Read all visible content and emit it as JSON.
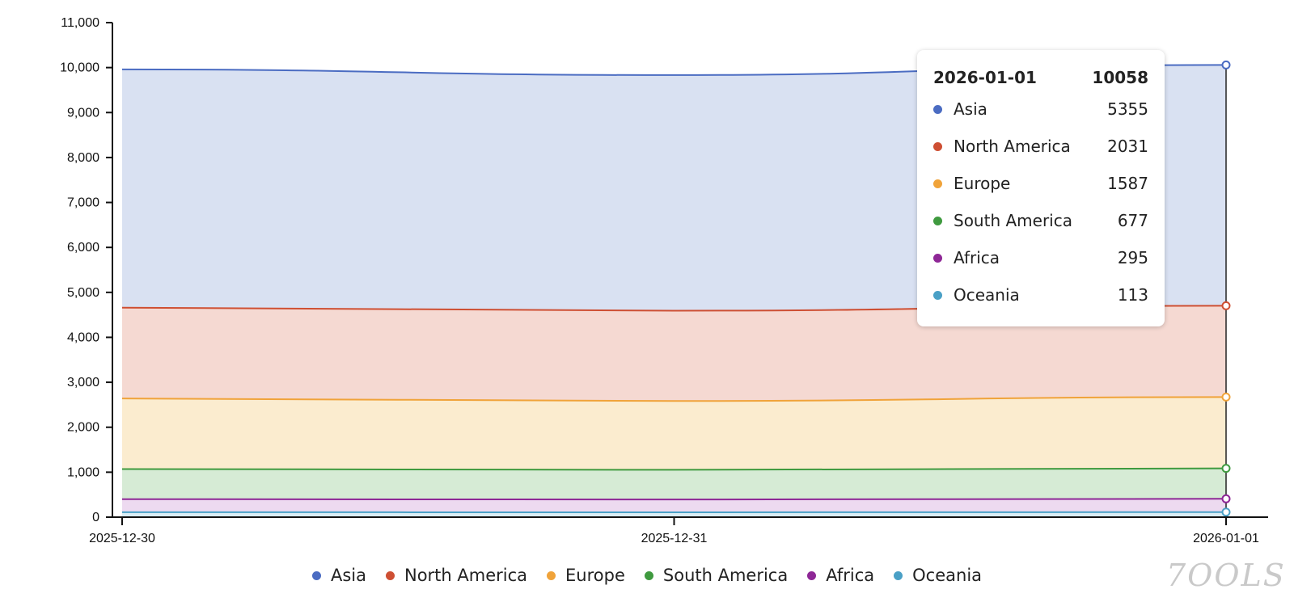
{
  "chart_data": {
    "type": "area",
    "stacked": true,
    "x": [
      "2025-12-30",
      "2025-12-31",
      "2026-01-01"
    ],
    "series": [
      {
        "name": "Asia",
        "color": "#4b6cc2",
        "fill": "#d9e1f2",
        "values": [
          5300,
          5240,
          5355
        ]
      },
      {
        "name": "North America",
        "color": "#ce4f33",
        "fill": "#f5d9d2",
        "values": [
          2020,
          2010,
          2031
        ]
      },
      {
        "name": "Europe",
        "color": "#f0a33a",
        "fill": "#fbeccf",
        "values": [
          1570,
          1530,
          1587
        ]
      },
      {
        "name": "South America",
        "color": "#3f9a3f",
        "fill": "#d6ebd5",
        "values": [
          670,
          660,
          677
        ]
      },
      {
        "name": "Africa",
        "color": "#8e2796",
        "fill": "#eddaf0",
        "values": [
          290,
          285,
          295
        ]
      },
      {
        "name": "Oceania",
        "color": "#4aa0c6",
        "fill": "#d9edf5",
        "values": [
          110,
          108,
          113
        ]
      }
    ],
    "ylim": [
      0,
      11000
    ],
    "yticks": [
      "0",
      "1,000",
      "2,000",
      "3,000",
      "4,000",
      "5,000",
      "6,000",
      "7,000",
      "8,000",
      "9,000",
      "10,000",
      "11,000"
    ],
    "legend_position": "bottom",
    "grid": false
  },
  "tooltip": {
    "date": "2026-01-01",
    "total": "10058",
    "rows": [
      {
        "name": "Asia",
        "value": "5355",
        "color": "#4b6cc2"
      },
      {
        "name": "North America",
        "value": "2031",
        "color": "#ce4f33"
      },
      {
        "name": "Europe",
        "value": "1587",
        "color": "#f0a33a"
      },
      {
        "name": "South America",
        "value": "677",
        "color": "#3f9a3f"
      },
      {
        "name": "Africa",
        "value": "295",
        "color": "#8e2796"
      },
      {
        "name": "Oceania",
        "value": "113",
        "color": "#4aa0c6"
      }
    ]
  },
  "legend": [
    {
      "name": "Asia",
      "color": "#4b6cc2"
    },
    {
      "name": "North America",
      "color": "#ce4f33"
    },
    {
      "name": "Europe",
      "color": "#f0a33a"
    },
    {
      "name": "South America",
      "color": "#3f9a3f"
    },
    {
      "name": "Africa",
      "color": "#8e2796"
    },
    {
      "name": "Oceania",
      "color": "#4aa0c6"
    }
  ],
  "watermark": "7OOLS"
}
